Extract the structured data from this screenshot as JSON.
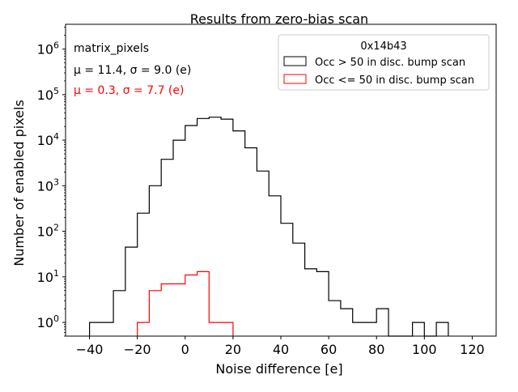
{
  "chart_data": {
    "type": "histogram",
    "title": "Results from zero-bias scan",
    "xlabel": "Noise difference [e]",
    "ylabel": "Number of enabled pixels",
    "xlim": [
      -50,
      130
    ],
    "ylim": [
      0.5,
      3500000
    ],
    "yscale": "log",
    "x_ticks": [
      -40,
      -20,
      0,
      20,
      40,
      60,
      80,
      100,
      120
    ],
    "y_ticks": [
      {
        "value": 1,
        "base": "10",
        "exp": "0"
      },
      {
        "value": 10,
        "base": "10",
        "exp": "1"
      },
      {
        "value": 100,
        "base": "10",
        "exp": "2"
      },
      {
        "value": 1000,
        "base": "10",
        "exp": "3"
      },
      {
        "value": 10000,
        "base": "10",
        "exp": "4"
      },
      {
        "value": 100000,
        "base": "10",
        "exp": "5"
      },
      {
        "value": 1000000,
        "base": "10",
        "exp": "6"
      }
    ],
    "annotations": {
      "group": "matrix_pixels",
      "black_stats": "μ = 11.4, σ = 9.0 (e)",
      "red_stats": "μ = 0.3, σ = 7.7 (e)"
    },
    "legend": {
      "title": "0x14b43",
      "location": "top-right"
    },
    "series": [
      {
        "name": "Occ > 50 in disc. bump scan",
        "color": "#000000",
        "bin_edges": [
          -40,
          -35,
          -30,
          -25,
          -20,
          -15,
          -10,
          -5,
          0,
          5,
          10,
          15,
          20,
          25,
          30,
          35,
          40,
          45,
          50,
          55,
          60,
          65,
          70,
          75,
          80,
          85,
          90,
          95,
          100,
          105,
          110
        ],
        "counts": [
          1,
          1,
          5,
          45,
          250,
          1000,
          3800,
          10000,
          21000,
          30000,
          32000,
          29000,
          16000,
          6800,
          2100,
          600,
          150,
          55,
          15,
          13,
          3,
          2,
          1,
          1,
          2,
          0,
          0,
          1,
          0,
          1
        ]
      },
      {
        "name": "Occ <= 50 in disc. bump scan",
        "color": "#ff0000",
        "bin_edges": [
          -20,
          -15,
          -10,
          -5,
          0,
          5,
          10,
          15,
          20
        ],
        "counts": [
          1,
          5,
          7,
          7,
          11,
          13,
          1,
          1
        ]
      }
    ]
  }
}
